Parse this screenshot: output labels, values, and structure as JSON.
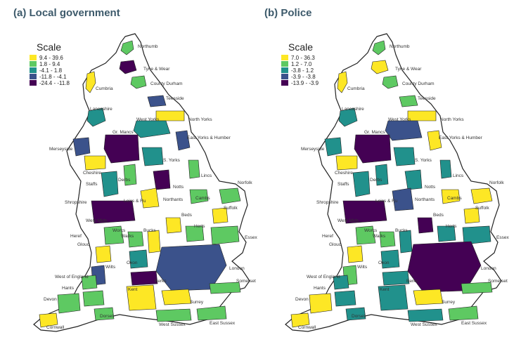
{
  "panels": [
    {
      "title": "(a) Local government",
      "legend": {
        "title": "Scale",
        "entries": [
          {
            "label": "9.4 - 39.6",
            "color": "#fde725"
          },
          {
            "label": "1.8 - 9.4",
            "color": "#5ec962"
          },
          {
            "label": "-4.1 - 1.8",
            "color": "#21918c"
          },
          {
            "label": "-11.8 - -4.1",
            "color": "#3b528b"
          },
          {
            "label": "-24.4 - -11.8",
            "color": "#440154"
          }
        ]
      }
    },
    {
      "title": "(b) Police",
      "legend": {
        "title": "Scale",
        "entries": [
          {
            "label": "7.0 - 36.3",
            "color": "#fde725"
          },
          {
            "label": "1.2 - 7.0",
            "color": "#5ec962"
          },
          {
            "label": "-3.8 - 1.2",
            "color": "#21918c"
          },
          {
            "label": "-3.9 - -3.8",
            "color": "#3b528b"
          },
          {
            "label": "-13.9 - -3.9",
            "color": "#440154"
          }
        ]
      }
    }
  ],
  "region_labels": [
    "Northumb",
    "Tyne & Wear",
    "Cumbria",
    "County Durham",
    "Teesside",
    "Lancashire",
    "North Yorks",
    "West Yorks",
    "East Yorks & Humber",
    "Gr. Mancs",
    "Merseyside",
    "S. Yorks",
    "Cheshire",
    "Lincs",
    "Norfolk",
    "Staffs",
    "Derbs",
    "Notts",
    "Shropshire",
    "Leics & Ru",
    "Northants",
    "Cambs",
    "Suffolk",
    "Beds",
    "West Mids",
    "Herts",
    "Essex",
    "Worcs",
    "Heref",
    "Warks",
    "Bucks",
    "Glouc",
    "Oxon",
    "London",
    "Wilts",
    "Berks",
    "West of England",
    "Somerset",
    "Hants",
    "Kent",
    "Devon",
    "Dorset",
    "Surrey",
    "East Sussex",
    "West Sussex",
    "Cornwall"
  ],
  "colors": {
    "title": "#3d5a6b",
    "outline": "#222222",
    "land": "#ffffff"
  }
}
